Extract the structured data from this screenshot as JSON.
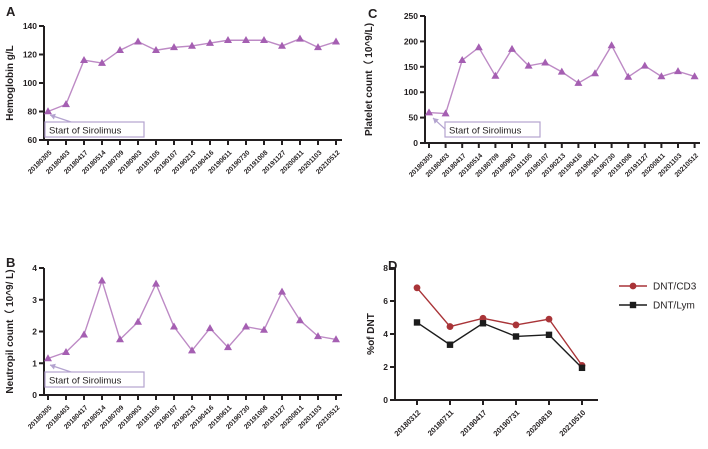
{
  "figure": {
    "background": "#ffffff",
    "axis_color": "#231f20",
    "text_color": "#231f20",
    "annotation_box_border": "#b3a3cf",
    "annotation_arrow_color": "#b3a3cf",
    "series_purple": "#a55fb2",
    "series_purple_line": "#bd8ac5",
    "series_red": "#a93438",
    "series_black": "#1c1c1c"
  },
  "chart_data": [
    {
      "id": "A",
      "panel_label": "A",
      "type": "line",
      "title": "",
      "xlabel": "",
      "ylabel": "Hemoglobin g/L",
      "ylim": [
        60,
        140
      ],
      "yticks": [
        60,
        80,
        100,
        120,
        140
      ],
      "grid": false,
      "legend": false,
      "annotation": "Start of Sirolimus",
      "categories": [
        "20180305",
        "20180403",
        "20180417",
        "20180514",
        "20180709",
        "20180903",
        "20181105",
        "20190107",
        "20190213",
        "20190416",
        "20190611",
        "20190730",
        "20191008",
        "20191127",
        "20200811",
        "20201103",
        "20210512"
      ],
      "series": [
        {
          "name": "Hemoglobin",
          "color": "#a55fb2",
          "line_color": "#bd8ac5",
          "marker": "triangle",
          "values": [
            80,
            85,
            116,
            114,
            123,
            129,
            123,
            125,
            126,
            128,
            130,
            130,
            130,
            126,
            131,
            125,
            129
          ]
        }
      ]
    },
    {
      "id": "B",
      "panel_label": "B",
      "type": "line",
      "title": "",
      "xlabel": "",
      "ylabel": "Neutropil count（ 10^9/ L)",
      "ylim": [
        0,
        4
      ],
      "yticks": [
        0,
        1,
        2,
        3,
        4
      ],
      "grid": false,
      "legend": false,
      "annotation": "Start of Sirolimus",
      "categories": [
        "20180305",
        "20180403",
        "20180417",
        "20180514",
        "20180709",
        "20180903",
        "20181105",
        "20190107",
        "20190213",
        "20190416",
        "20190611",
        "20190730",
        "20191008",
        "20191127",
        "20200811",
        "20201103",
        "20210512"
      ],
      "series": [
        {
          "name": "Neutrophil",
          "color": "#a55fb2",
          "line_color": "#bd8ac5",
          "marker": "triangle",
          "values": [
            1.15,
            1.35,
            1.9,
            3.6,
            1.75,
            2.3,
            3.5,
            2.15,
            1.4,
            2.1,
            1.5,
            2.15,
            2.05,
            3.25,
            2.35,
            1.85,
            1.75
          ]
        }
      ]
    },
    {
      "id": "C",
      "panel_label": "C",
      "type": "line",
      "title": "",
      "xlabel": "",
      "ylabel": "Platelet count（ 10^9/L)",
      "ylim": [
        0,
        250
      ],
      "yticks": [
        0,
        50,
        100,
        150,
        200,
        250
      ],
      "grid": false,
      "legend": false,
      "annotation": "Start of Sirolimus",
      "categories": [
        "20180305",
        "20180403",
        "20180417",
        "20180514",
        "20180709",
        "20180903",
        "20181105",
        "20190107",
        "20190213",
        "20190416",
        "20190611",
        "20190730",
        "20191008",
        "20191127",
        "20200811",
        "20201103",
        "20210512"
      ],
      "series": [
        {
          "name": "Platelet",
          "color": "#a55fb2",
          "line_color": "#bd8ac5",
          "marker": "triangle",
          "values": [
            60,
            58,
            163,
            188,
            132,
            185,
            152,
            158,
            140,
            118,
            137,
            192,
            130,
            152,
            131,
            141,
            131
          ]
        }
      ]
    },
    {
      "id": "D",
      "panel_label": "D",
      "type": "line",
      "title": "",
      "xlabel": "",
      "ylabel": "%of DNT",
      "ylim": [
        0,
        8
      ],
      "yticks": [
        0,
        2,
        4,
        6,
        8
      ],
      "grid": false,
      "legend": true,
      "legend_position": "right",
      "annotation": null,
      "categories": [
        "20180312",
        "20180711",
        "20190417",
        "20190731",
        "20200819",
        "20210510"
      ],
      "series": [
        {
          "name": "DNT/CD3",
          "color": "#a93438",
          "line_color": "#a93438",
          "marker": "circle",
          "values": [
            6.8,
            4.45,
            4.95,
            4.55,
            4.9,
            2.1
          ]
        },
        {
          "name": "DNT/Lym",
          "color": "#1c1c1c",
          "line_color": "#1c1c1c",
          "marker": "square",
          "values": [
            4.7,
            3.35,
            4.65,
            3.85,
            3.95,
            1.95
          ]
        }
      ]
    }
  ]
}
